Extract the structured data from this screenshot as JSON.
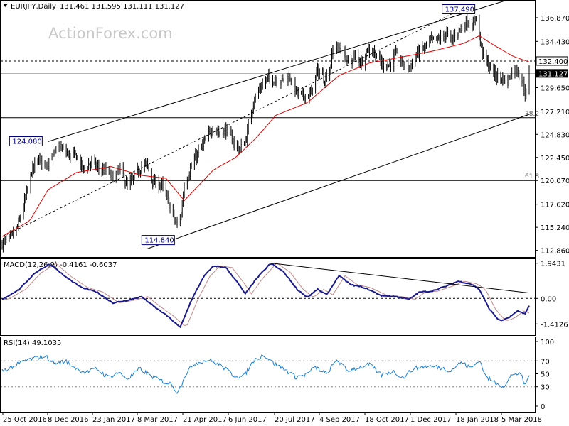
{
  "header": {
    "symbol": "EURJPY,Daily",
    "ohlc": "131.461 131.595 131.111 131.127"
  },
  "watermark": "ActionForex.com",
  "colors": {
    "price": "#000000",
    "ma": "#e00000",
    "macd": "#1a1a8c",
    "signal": "#c08a8a",
    "rsi": "#1c7fd0",
    "grid": "#666666",
    "box_border": "#000080",
    "box_text": "#000080",
    "current_bg": "#000000",
    "current_text": "#ffffff"
  },
  "chart_data": [
    {
      "type": "line",
      "panel": "price",
      "title": "EURJPY,Daily",
      "ylim": [
        112.1,
        138.7
      ],
      "y_ticks": [
        "136.870",
        "134.430",
        "132.400",
        "131.127",
        "129.650",
        "127.210",
        "124.830",
        "122.450",
        "120.070",
        "117.620",
        "115.240",
        "112.860"
      ],
      "x_ticks": [
        "25 Oct 2016",
        "8 Dec 2016",
        "23 Jan 2017",
        "8 Mar 2017",
        "21 Apr 2017",
        "6 Jun 2017",
        "20 Jul 2017",
        "4 Sep 2017",
        "18 Oct 2017",
        "1 Dec 2017",
        "18 Jan 2018",
        "5 Mar 2018"
      ],
      "x_range": [
        "2016-10-24",
        "2018-03-26"
      ],
      "price_anchors": [
        [
          "2016-10-24",
          113.6
        ],
        [
          "2016-11-01",
          114.1
        ],
        [
          "2016-11-08",
          115.2
        ],
        [
          "2016-11-16",
          118.2
        ],
        [
          "2016-11-22",
          121.0
        ],
        [
          "2016-11-29",
          122.3
        ],
        [
          "2016-12-06",
          121.9
        ],
        [
          "2016-12-14",
          122.8
        ],
        [
          "2016-12-20",
          123.5
        ],
        [
          "2016-12-28",
          122.7
        ],
        [
          "2017-01-05",
          122.6
        ],
        [
          "2017-01-12",
          121.2
        ],
        [
          "2017-01-20",
          122.0
        ],
        [
          "2017-01-27",
          121.3
        ],
        [
          "2017-02-03",
          121.0
        ],
        [
          "2017-02-10",
          120.4
        ],
        [
          "2017-02-17",
          121.1
        ],
        [
          "2017-02-24",
          119.4
        ],
        [
          "2017-03-03",
          120.4
        ],
        [
          "2017-03-10",
          121.6
        ],
        [
          "2017-03-15",
          121.7
        ],
        [
          "2017-03-22",
          119.8
        ],
        [
          "2017-03-30",
          119.6
        ],
        [
          "2017-04-06",
          117.6
        ],
        [
          "2017-04-13",
          115.4
        ],
        [
          "2017-04-18",
          116.6
        ],
        [
          "2017-04-21",
          119.8
        ],
        [
          "2017-04-28",
          121.5
        ],
        [
          "2017-05-05",
          123.0
        ],
        [
          "2017-05-12",
          124.2
        ],
        [
          "2017-05-19",
          125.6
        ],
        [
          "2017-05-26",
          124.9
        ],
        [
          "2017-06-02",
          125.3
        ],
        [
          "2017-06-09",
          123.9
        ],
        [
          "2017-06-15",
          123.2
        ],
        [
          "2017-06-21",
          124.5
        ],
        [
          "2017-06-28",
          128.3
        ],
        [
          "2017-07-05",
          129.7
        ],
        [
          "2017-07-12",
          130.6
        ],
        [
          "2017-07-20",
          130.5
        ],
        [
          "2017-07-27",
          130.4
        ],
        [
          "2017-08-03",
          130.8
        ],
        [
          "2017-08-10",
          129.0
        ],
        [
          "2017-08-16",
          128.8
        ],
        [
          "2017-08-23",
          128.9
        ],
        [
          "2017-08-30",
          131.4
        ],
        [
          "2017-09-06",
          130.6
        ],
        [
          "2017-09-11",
          131.5
        ],
        [
          "2017-09-15",
          134.0
        ],
        [
          "2017-09-22",
          133.6
        ],
        [
          "2017-09-29",
          132.2
        ],
        [
          "2017-10-06",
          132.9
        ],
        [
          "2017-10-12",
          132.3
        ],
        [
          "2017-10-18",
          133.7
        ],
        [
          "2017-10-25",
          133.3
        ],
        [
          "2017-11-01",
          132.2
        ],
        [
          "2017-11-08",
          132.0
        ],
        [
          "2017-11-15",
          133.0
        ],
        [
          "2017-11-22",
          132.0
        ],
        [
          "2017-11-29",
          131.8
        ],
        [
          "2017-12-06",
          133.2
        ],
        [
          "2017-12-13",
          133.8
        ],
        [
          "2017-12-20",
          134.5
        ],
        [
          "2017-12-27",
          134.6
        ],
        [
          "2018-01-04",
          135.2
        ],
        [
          "2018-01-09",
          134.4
        ],
        [
          "2018-01-12",
          135.2
        ],
        [
          "2018-01-18",
          135.8
        ],
        [
          "2018-01-24",
          136.6
        ],
        [
          "2018-01-30",
          136.0
        ],
        [
          "2018-02-02",
          137.3
        ],
        [
          "2018-02-06",
          134.2
        ],
        [
          "2018-02-09",
          133.0
        ],
        [
          "2018-02-15",
          131.8
        ],
        [
          "2018-02-22",
          130.8
        ],
        [
          "2018-02-28",
          130.6
        ],
        [
          "2018-03-05",
          130.3
        ],
        [
          "2018-03-09",
          131.4
        ],
        [
          "2018-03-14",
          131.6
        ],
        [
          "2018-03-19",
          130.4
        ],
        [
          "2018-03-23",
          128.8
        ],
        [
          "2018-03-26",
          131.1
        ]
      ],
      "ma_anchors": [
        [
          "2016-10-24",
          114.3
        ],
        [
          "2016-11-20",
          115.9
        ],
        [
          "2016-12-08",
          119.1
        ],
        [
          "2017-01-05",
          120.9
        ],
        [
          "2017-02-08",
          121.5
        ],
        [
          "2017-03-10",
          120.6
        ],
        [
          "2017-04-03",
          120.3
        ],
        [
          "2017-04-21",
          118.0
        ],
        [
          "2017-05-20",
          121.2
        ],
        [
          "2017-06-10",
          122.4
        ],
        [
          "2017-07-01",
          124.5
        ],
        [
          "2017-07-20",
          126.8
        ],
        [
          "2017-08-20",
          128.1
        ],
        [
          "2017-09-20",
          130.9
        ],
        [
          "2017-10-20",
          132.2
        ],
        [
          "2017-11-20",
          132.8
        ],
        [
          "2017-12-20",
          133.4
        ],
        [
          "2018-01-20",
          134.2
        ],
        [
          "2018-02-05",
          135.0
        ],
        [
          "2018-02-20",
          134.0
        ],
        [
          "2018-03-10",
          132.9
        ],
        [
          "2018-03-26",
          132.3
        ]
      ],
      "annotations": [
        {
          "label": "137.490",
          "date": "2018-02-02",
          "value": 137.49,
          "position": "above"
        },
        {
          "label": "124.080",
          "date": "2016-12-08",
          "value": 124.08,
          "position": "left"
        },
        {
          "label": "114.840",
          "date": "2017-04-17",
          "value": 114.84,
          "position": "below"
        }
      ],
      "fibo_levels": [
        {
          "label": "38.2",
          "value": 126.55
        },
        {
          "label": "61.8",
          "value": 120.07
        }
      ],
      "dashed_level": {
        "label": "132.400",
        "value": 132.4
      },
      "current_price": {
        "label": "131.127",
        "value": 131.127
      },
      "trend_channel": {
        "upper": [
          [
            "2016-12-08",
            124.08
          ],
          [
            "2018-03-20",
            139.2
          ]
        ],
        "lower": [
          [
            "2017-03-15",
            113.0
          ],
          [
            "2018-03-26",
            126.9
          ]
        ],
        "middle": [
          [
            "2016-10-25",
            114.3
          ],
          [
            "2018-01-25",
            138.1
          ]
        ]
      }
    },
    {
      "type": "line",
      "panel": "macd",
      "label": "MACD(12,26,9) -0.4161 -0.6037",
      "ylim": [
        -1.95,
        2.05
      ],
      "y_ticks": [
        "1.9431",
        "0.00",
        "-1.4126"
      ],
      "macd_anchors": [
        [
          "2016-10-24",
          -0.05
        ],
        [
          "2016-11-10",
          0.5
        ],
        [
          "2016-11-25",
          1.4
        ],
        [
          "2016-12-10",
          1.92
        ],
        [
          "2016-12-25",
          1.2
        ],
        [
          "2017-01-10",
          0.6
        ],
        [
          "2017-01-25",
          0.35
        ],
        [
          "2017-02-10",
          -0.25
        ],
        [
          "2017-02-25",
          -0.1
        ],
        [
          "2017-03-10",
          0.1
        ],
        [
          "2017-03-20",
          -0.35
        ],
        [
          "2017-04-05",
          -1.0
        ],
        [
          "2017-04-17",
          -1.6
        ],
        [
          "2017-04-28",
          -0.1
        ],
        [
          "2017-05-10",
          1.2
        ],
        [
          "2017-05-20",
          1.8
        ],
        [
          "2017-06-01",
          1.7
        ],
        [
          "2017-06-12",
          0.9
        ],
        [
          "2017-06-20",
          0.25
        ],
        [
          "2017-07-01",
          1.1
        ],
        [
          "2017-07-15",
          1.95
        ],
        [
          "2017-07-28",
          1.45
        ],
        [
          "2017-08-10",
          0.5
        ],
        [
          "2017-08-20",
          0.05
        ],
        [
          "2017-08-30",
          0.5
        ],
        [
          "2017-09-08",
          0.2
        ],
        [
          "2017-09-20",
          1.25
        ],
        [
          "2017-10-02",
          0.75
        ],
        [
          "2017-10-15",
          0.6
        ],
        [
          "2017-11-01",
          0.15
        ],
        [
          "2017-11-15",
          0.1
        ],
        [
          "2017-11-28",
          -0.05
        ],
        [
          "2017-12-08",
          0.35
        ],
        [
          "2017-12-20",
          0.4
        ],
        [
          "2018-01-05",
          0.7
        ],
        [
          "2018-01-15",
          0.95
        ],
        [
          "2018-01-28",
          0.8
        ],
        [
          "2018-02-05",
          0.5
        ],
        [
          "2018-02-15",
          -0.6
        ],
        [
          "2018-02-25",
          -1.25
        ],
        [
          "2018-03-05",
          -1.1
        ],
        [
          "2018-03-15",
          -0.7
        ],
        [
          "2018-03-22",
          -0.85
        ],
        [
          "2018-03-26",
          -0.42
        ]
      ],
      "signal_lag_days": 6,
      "trend_line": [
        [
          "2017-07-15",
          1.95
        ],
        [
          "2018-03-26",
          0.3
        ]
      ]
    },
    {
      "type": "line",
      "panel": "rsi",
      "label": "RSI(14) 49.1035",
      "ylim": [
        0,
        100
      ],
      "y_ticks": [
        "100",
        "70",
        "50",
        "30",
        "0"
      ],
      "rsi_anchors": [
        [
          "2016-10-24",
          55
        ],
        [
          "2016-11-05",
          62
        ],
        [
          "2016-11-15",
          70
        ],
        [
          "2016-11-25",
          74
        ],
        [
          "2016-12-05",
          78
        ],
        [
          "2016-12-15",
          66
        ],
        [
          "2016-12-25",
          70
        ],
        [
          "2017-01-05",
          58
        ],
        [
          "2017-01-15",
          52
        ],
        [
          "2017-01-25",
          58
        ],
        [
          "2017-02-05",
          44
        ],
        [
          "2017-02-15",
          52
        ],
        [
          "2017-02-25",
          42
        ],
        [
          "2017-03-08",
          58
        ],
        [
          "2017-03-18",
          48
        ],
        [
          "2017-03-28",
          40
        ],
        [
          "2017-04-08",
          34
        ],
        [
          "2017-04-15",
          20
        ],
        [
          "2017-04-22",
          50
        ],
        [
          "2017-05-01",
          66
        ],
        [
          "2017-05-15",
          72
        ],
        [
          "2017-05-28",
          62
        ],
        [
          "2017-06-08",
          48
        ],
        [
          "2017-06-18",
          45
        ],
        [
          "2017-06-28",
          70
        ],
        [
          "2017-07-08",
          80
        ],
        [
          "2017-07-18",
          66
        ],
        [
          "2017-07-28",
          58
        ],
        [
          "2017-08-08",
          45
        ],
        [
          "2017-08-18",
          48
        ],
        [
          "2017-08-28",
          60
        ],
        [
          "2017-09-08",
          50
        ],
        [
          "2017-09-18",
          72
        ],
        [
          "2017-09-28",
          55
        ],
        [
          "2017-10-10",
          60
        ],
        [
          "2017-10-20",
          64
        ],
        [
          "2017-11-01",
          48
        ],
        [
          "2017-11-12",
          54
        ],
        [
          "2017-11-22",
          44
        ],
        [
          "2017-12-02",
          58
        ],
        [
          "2017-12-15",
          62
        ],
        [
          "2017-12-28",
          60
        ],
        [
          "2018-01-08",
          55
        ],
        [
          "2018-01-18",
          68
        ],
        [
          "2018-01-28",
          58
        ],
        [
          "2018-02-05",
          72
        ],
        [
          "2018-02-12",
          44
        ],
        [
          "2018-02-22",
          36
        ],
        [
          "2018-03-02",
          30
        ],
        [
          "2018-03-10",
          52
        ],
        [
          "2018-03-18",
          48
        ],
        [
          "2018-03-22",
          32
        ],
        [
          "2018-03-26",
          49
        ]
      ]
    }
  ]
}
